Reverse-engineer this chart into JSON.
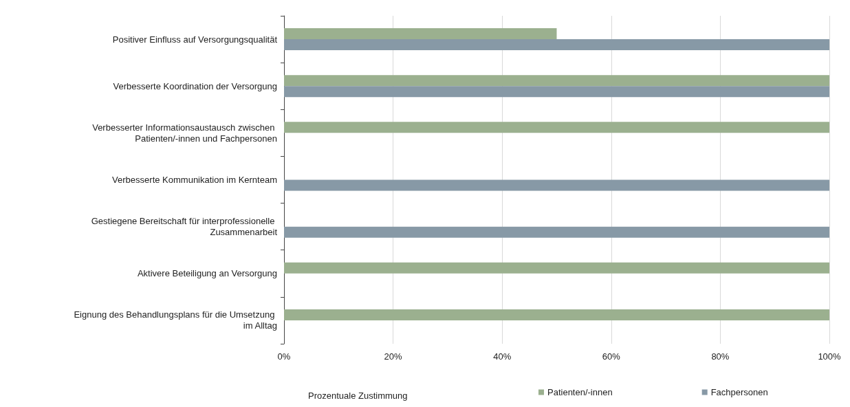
{
  "chart_data": {
    "type": "bar",
    "orientation": "horizontal",
    "xlabel": "Prozentuale Zustimmung",
    "categories": [
      "Positiver Einfluss auf Versorgungsqualität",
      "Verbesserte Koordination der Versorgung",
      "Verbesserter Informationsaustausch zwischen Patienten/-innen und Fachpersonen",
      "Verbesserte Kommunikation im Kernteam",
      "Gestiegene Bereitschaft für interprofessionelle Zusammenarbeit",
      "Aktivere Beteiligung an Versorgung",
      "Eignung des Behandlungsplans für die Umsetzung im Alltag"
    ],
    "series": [
      {
        "name": "Patienten/-innen",
        "color": "#9bb08f",
        "values": [
          50,
          100,
          100,
          null,
          null,
          100,
          100
        ]
      },
      {
        "name": "Fachpersonen",
        "color": "#8799a6",
        "values": [
          100,
          100,
          null,
          100,
          100,
          null,
          null
        ]
      }
    ],
    "xlim": [
      0,
      100
    ],
    "xticks": [
      {
        "value": 0,
        "label": "0%"
      },
      {
        "value": 20,
        "label": "20%"
      },
      {
        "value": 40,
        "label": "40%"
      },
      {
        "value": 60,
        "label": "60%"
      },
      {
        "value": 80,
        "label": "80%"
      },
      {
        "value": 100,
        "label": "100%"
      }
    ],
    "grid": "x",
    "legend": "bottom"
  }
}
